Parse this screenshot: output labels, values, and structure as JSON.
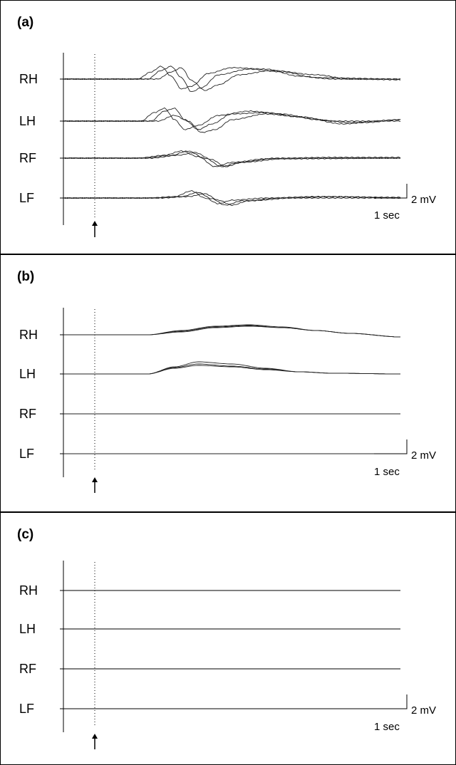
{
  "chart_data": [
    {
      "type": "line",
      "panel_label": "(a)",
      "channels": [
        "RH",
        "LH",
        "RF",
        "LF"
      ],
      "scale_bar": {
        "voltage": "2 mV",
        "time": "1 sec"
      },
      "x_range_sec": [
        0,
        10
      ],
      "stimulus_time_sec": 0.95,
      "series": [
        {
          "channel": "RH",
          "trials": [
            [
              [
                0,
                0
              ],
              [
                2.2,
                0
              ],
              [
                2.6,
                0.5
              ],
              [
                2.9,
                0.9
              ],
              [
                3.2,
                0.2
              ],
              [
                3.5,
                -0.7
              ],
              [
                3.8,
                -0.5
              ],
              [
                4.3,
                0.4
              ],
              [
                5,
                0.8
              ],
              [
                6,
                0.7
              ],
              [
                7,
                0.2
              ],
              [
                8,
                0
              ],
              [
                10,
                0
              ]
            ],
            [
              [
                0,
                0
              ],
              [
                2.5,
                0
              ],
              [
                2.9,
                0.6
              ],
              [
                3.2,
                0.9
              ],
              [
                3.5,
                0.1
              ],
              [
                3.8,
                -0.9
              ],
              [
                4.1,
                -0.6
              ],
              [
                4.6,
                0.3
              ],
              [
                5.5,
                0.7
              ],
              [
                6.5,
                0.5
              ],
              [
                7.5,
                0.1
              ],
              [
                10,
                0
              ]
            ],
            [
              [
                0,
                0
              ],
              [
                2.8,
                0
              ],
              [
                3.2,
                0.5
              ],
              [
                3.5,
                0.8
              ],
              [
                3.8,
                -0.1
              ],
              [
                4.2,
                -0.8
              ],
              [
                4.6,
                -0.4
              ],
              [
                5.2,
                0.3
              ],
              [
                6.2,
                0.6
              ],
              [
                7.5,
                0.3
              ],
              [
                8.5,
                0
              ],
              [
                10,
                -0.05
              ]
            ]
          ]
        },
        {
          "channel": "LH",
          "trials": [
            [
              [
                0,
                0
              ],
              [
                2.3,
                0
              ],
              [
                2.7,
                0.6
              ],
              [
                3.0,
                0.9
              ],
              [
                3.3,
                0.1
              ],
              [
                3.6,
                -0.6
              ],
              [
                4.0,
                -0.3
              ],
              [
                4.6,
                0.4
              ],
              [
                5.5,
                0.7
              ],
              [
                6.5,
                0.5
              ],
              [
                7.5,
                0.1
              ],
              [
                8.5,
                -0.1
              ],
              [
                10,
                0.1
              ]
            ],
            [
              [
                0,
                0
              ],
              [
                2.6,
                0
              ],
              [
                3.0,
                0.7
              ],
              [
                3.3,
                0.9
              ],
              [
                3.6,
                0.1
              ],
              [
                4.0,
                -0.6
              ],
              [
                4.4,
                -0.2
              ],
              [
                5.0,
                0.5
              ],
              [
                6.0,
                0.6
              ],
              [
                7.0,
                0.3
              ],
              [
                8.3,
                -0.2
              ],
              [
                9,
                -0.1
              ],
              [
                10,
                0.1
              ]
            ],
            [
              [
                0,
                0
              ],
              [
                2.8,
                0
              ],
              [
                3.3,
                0.4
              ],
              [
                3.7,
                0
              ],
              [
                4.1,
                -0.8
              ],
              [
                4.5,
                -0.6
              ],
              [
                5.0,
                0.1
              ],
              [
                6.0,
                0.5
              ],
              [
                7.0,
                0.3
              ],
              [
                8.0,
                0
              ],
              [
                10,
                0
              ]
            ]
          ]
        },
        {
          "channel": "RF",
          "trials": [
            [
              [
                0,
                0
              ],
              [
                2.2,
                0
              ],
              [
                3.0,
                0.2
              ],
              [
                3.5,
                0.5
              ],
              [
                4.0,
                0.1
              ],
              [
                4.5,
                -0.6
              ],
              [
                5.0,
                -0.3
              ],
              [
                6.0,
                -0.05
              ],
              [
                7.5,
                0
              ],
              [
                10,
                0
              ]
            ],
            [
              [
                0,
                0
              ],
              [
                2.4,
                0
              ],
              [
                3.2,
                0.2
              ],
              [
                3.7,
                0.5
              ],
              [
                4.2,
                0
              ],
              [
                4.7,
                -0.6
              ],
              [
                5.2,
                -0.3
              ],
              [
                6.3,
                0
              ],
              [
                8,
                0.05
              ],
              [
                10,
                0.05
              ]
            ],
            [
              [
                0,
                0
              ],
              [
                2.6,
                0
              ],
              [
                3.4,
                0.2
              ],
              [
                3.9,
                0.4
              ],
              [
                4.4,
                -0.1
              ],
              [
                4.8,
                -0.6
              ],
              [
                5.3,
                -0.3
              ],
              [
                6.5,
                -0.05
              ],
              [
                10,
                0
              ]
            ]
          ]
        },
        {
          "channel": "LF",
          "trials": [
            [
              [
                0,
                0
              ],
              [
                2.5,
                0
              ],
              [
                3.3,
                0.1
              ],
              [
                3.8,
                0.5
              ],
              [
                4.2,
                0
              ],
              [
                4.6,
                -0.4
              ],
              [
                5.0,
                -0.15
              ],
              [
                6.0,
                0
              ],
              [
                7.5,
                0.1
              ],
              [
                10,
                0.05
              ]
            ],
            [
              [
                0,
                0
              ],
              [
                2.7,
                0
              ],
              [
                3.5,
                0.1
              ],
              [
                4.0,
                0.4
              ],
              [
                4.4,
                -0.05
              ],
              [
                4.8,
                -0.5
              ],
              [
                5.3,
                -0.2
              ],
              [
                6.5,
                0
              ],
              [
                8.0,
                0.1
              ],
              [
                10,
                0
              ]
            ],
            [
              [
                0,
                0
              ],
              [
                2.9,
                0
              ],
              [
                3.7,
                0.1
              ],
              [
                4.2,
                0.3
              ],
              [
                4.6,
                -0.15
              ],
              [
                5.0,
                -0.5
              ],
              [
                5.5,
                -0.2
              ],
              [
                6.8,
                0
              ],
              [
                10,
                0
              ]
            ]
          ]
        }
      ]
    },
    {
      "type": "line",
      "panel_label": "(b)",
      "channels": [
        "RH",
        "LH",
        "RF",
        "LF"
      ],
      "scale_bar": {
        "voltage": "2 mV",
        "time": "1 sec"
      },
      "x_range_sec": [
        0,
        10
      ],
      "stimulus_time_sec": 0.95,
      "series": [
        {
          "channel": "RH",
          "trials": [
            [
              [
                0,
                0
              ],
              [
                2.5,
                0
              ],
              [
                3.5,
                0.2
              ],
              [
                4.5,
                0.5
              ],
              [
                5.5,
                0.6
              ],
              [
                6.5,
                0.5
              ],
              [
                7.5,
                0.3
              ],
              [
                8.5,
                0.1
              ],
              [
                10,
                -0.15
              ]
            ],
            [
              [
                0,
                0
              ],
              [
                2.5,
                0
              ],
              [
                3.5,
                0.25
              ],
              [
                4.5,
                0.55
              ],
              [
                5.5,
                0.65
              ],
              [
                6.5,
                0.5
              ],
              [
                7.5,
                0.3
              ],
              [
                8.5,
                0.1
              ],
              [
                10,
                -0.15
              ]
            ],
            [
              [
                0,
                0
              ],
              [
                2.5,
                0
              ],
              [
                3.5,
                0.3
              ],
              [
                4.5,
                0.6
              ],
              [
                5.5,
                0.7
              ],
              [
                6.5,
                0.55
              ],
              [
                7.5,
                0.3
              ],
              [
                8.5,
                0.1
              ],
              [
                10,
                -0.15
              ]
            ]
          ]
        },
        {
          "channel": "LH",
          "trials": [
            [
              [
                0,
                0
              ],
              [
                2.5,
                0
              ],
              [
                3.3,
                0.4
              ],
              [
                4.0,
                0.6
              ],
              [
                5,
                0.5
              ],
              [
                6,
                0.3
              ],
              [
                7,
                0.15
              ],
              [
                8,
                0.05
              ],
              [
                10,
                0
              ]
            ],
            [
              [
                0,
                0
              ],
              [
                2.5,
                0
              ],
              [
                3.3,
                0.5
              ],
              [
                4.0,
                0.85
              ],
              [
                5,
                0.7
              ],
              [
                6,
                0.4
              ],
              [
                7,
                0.15
              ],
              [
                8,
                0.05
              ],
              [
                10,
                0
              ]
            ],
            [
              [
                0,
                0
              ],
              [
                2.5,
                0
              ],
              [
                3.3,
                0.45
              ],
              [
                4.0,
                0.7
              ],
              [
                5,
                0.55
              ],
              [
                6,
                0.35
              ],
              [
                7,
                0.15
              ],
              [
                8,
                0.05
              ],
              [
                10,
                0
              ]
            ]
          ]
        },
        {
          "channel": "RF",
          "trials": [
            [
              [
                0,
                0
              ],
              [
                10,
                0
              ]
            ]
          ]
        },
        {
          "channel": "LF",
          "trials": [
            [
              [
                0,
                0
              ],
              [
                10,
                0
              ]
            ]
          ]
        }
      ]
    },
    {
      "type": "line",
      "panel_label": "(c)",
      "channels": [
        "RH",
        "LH",
        "RF",
        "LF"
      ],
      "scale_bar": {
        "voltage": "2 mV",
        "time": "1 sec"
      },
      "x_range_sec": [
        0,
        10
      ],
      "stimulus_time_sec": 0.95,
      "series": [
        {
          "channel": "RH",
          "trials": [
            [
              [
                0,
                0
              ],
              [
                10,
                0
              ]
            ]
          ]
        },
        {
          "channel": "LH",
          "trials": [
            [
              [
                0,
                0
              ],
              [
                10,
                0
              ]
            ]
          ]
        },
        {
          "channel": "RF",
          "trials": [
            [
              [
                0,
                0
              ],
              [
                10,
                0
              ]
            ]
          ]
        },
        {
          "channel": "LF",
          "trials": [
            [
              [
                0,
                0
              ],
              [
                10,
                0
              ]
            ]
          ]
        }
      ]
    }
  ]
}
